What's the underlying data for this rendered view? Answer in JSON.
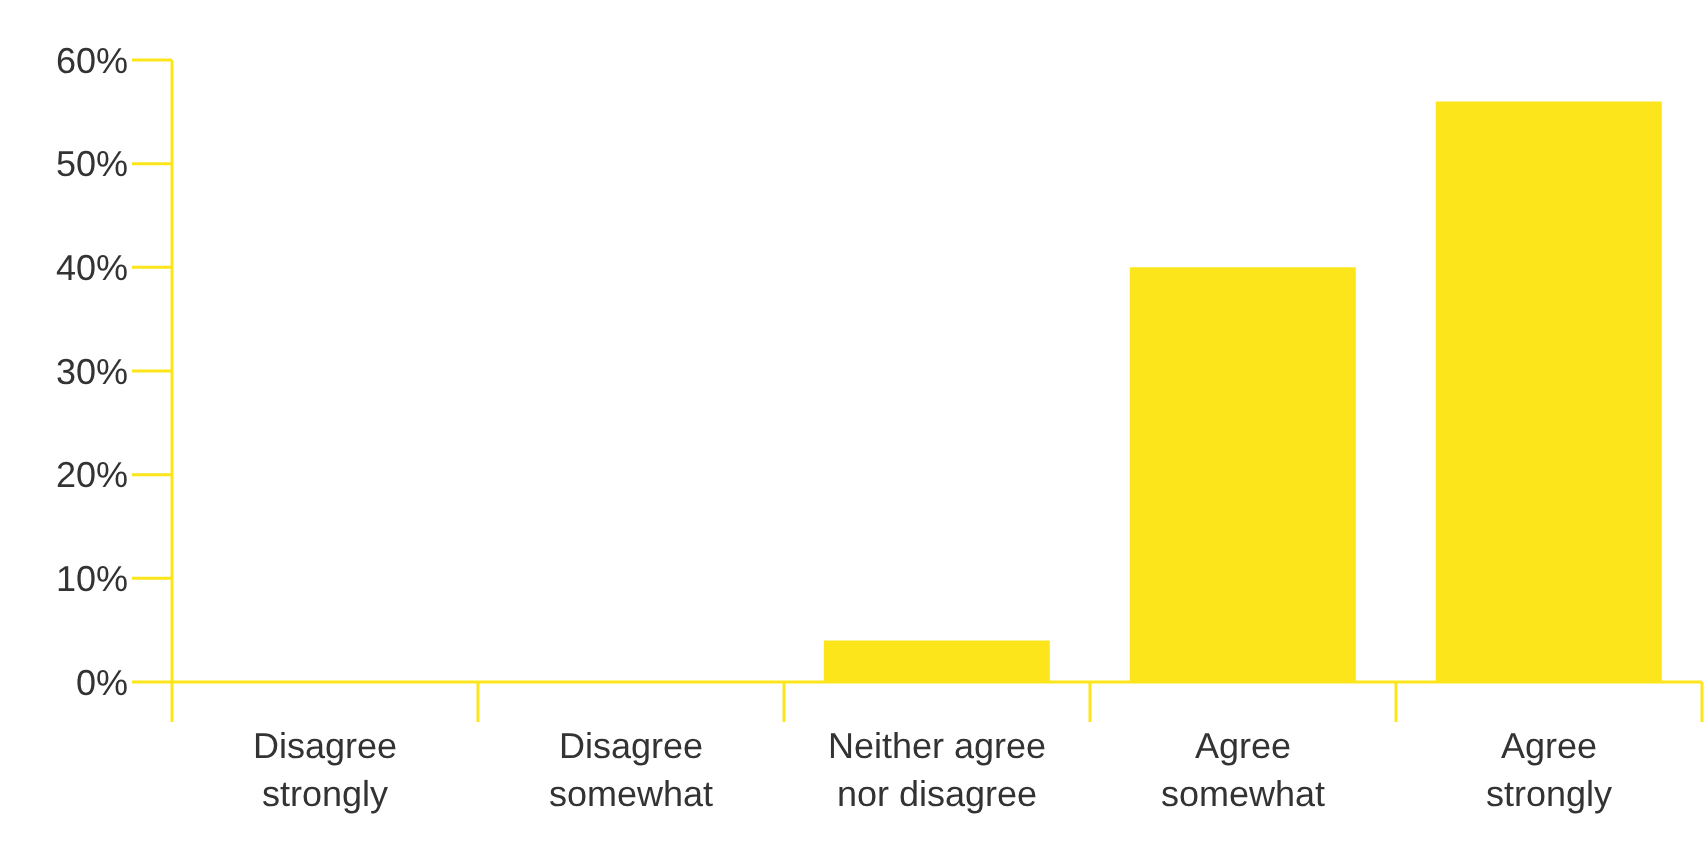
{
  "chart_data": {
    "type": "bar",
    "categories": [
      "Disagree strongly",
      "Disagree somewhat",
      "Neither agree nor disagree",
      "Agree somewhat",
      "Agree strongly"
    ],
    "values": [
      0,
      0,
      4,
      40,
      56
    ],
    "color": "#fce51b",
    "ylim": [
      0,
      60
    ],
    "yticks": [
      {
        "value": 0,
        "label": "0%"
      },
      {
        "value": 10,
        "label": "10%"
      },
      {
        "value": 20,
        "label": "20%"
      },
      {
        "value": 30,
        "label": "30%"
      },
      {
        "value": 40,
        "label": "40%"
      },
      {
        "value": 50,
        "label": "50%"
      },
      {
        "value": 60,
        "label": "60%"
      }
    ],
    "grid": false,
    "legend": false
  }
}
